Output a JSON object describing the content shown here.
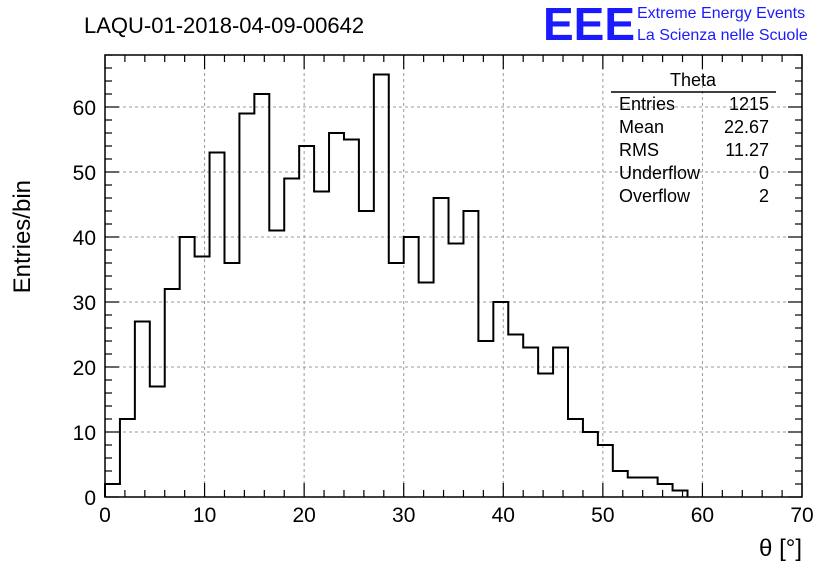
{
  "chart_data": {
    "type": "bar",
    "title": "LAQU-01-2018-04-09-00642",
    "xlabel": "θ [°]",
    "ylabel": "Entries/bin",
    "xlim": [
      0,
      70
    ],
    "ylim": [
      0,
      68
    ],
    "grid": true,
    "bin_width": 1.5,
    "bin_start": 0,
    "xticks": [
      0,
      10,
      20,
      30,
      40,
      50,
      60,
      70
    ],
    "yticks": [
      0,
      10,
      20,
      30,
      40,
      50,
      60
    ],
    "values": [
      2,
      12,
      27,
      17,
      32,
      40,
      37,
      53,
      36,
      59,
      62,
      41,
      49,
      54,
      47,
      56,
      55,
      44,
      65,
      36,
      40,
      33,
      46,
      39,
      44,
      24,
      30,
      25,
      23,
      19,
      23,
      12,
      10,
      8,
      4,
      3,
      3,
      2,
      1,
      0
    ],
    "stats_box": {
      "title": "Theta",
      "entries": [
        {
          "label": "Entries",
          "value": "1215"
        },
        {
          "label": "Mean",
          "value": "22.67"
        },
        {
          "label": "RMS",
          "value": "11.27"
        },
        {
          "label": "Underflow",
          "value": "0"
        },
        {
          "label": "Overflow",
          "value": "2"
        }
      ]
    }
  },
  "logo": {
    "text": "EEE",
    "line1": "Extreme Energy Events",
    "line2": "La Scienza nelle Scuole",
    "color": "#1a1aff"
  }
}
